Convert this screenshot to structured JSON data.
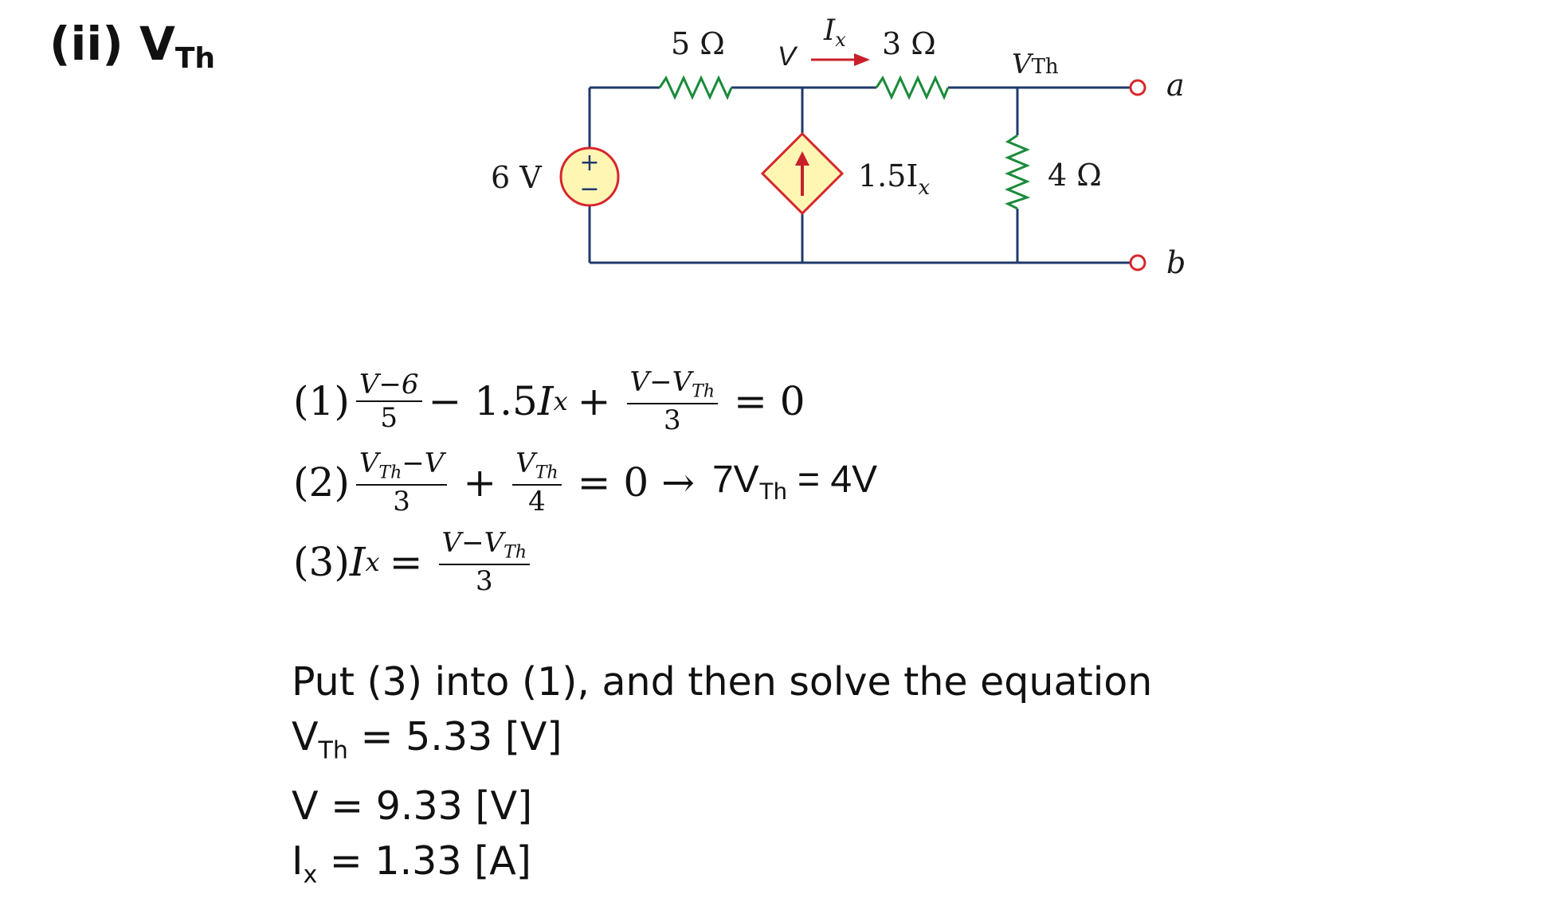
{
  "heading": {
    "main": "(ii) V",
    "sub": "Th"
  },
  "circuit": {
    "resistor_left": "5 Ω",
    "resistor_mid": "3 Ω",
    "resistor_right": "4 Ω",
    "source_label": "6 V",
    "source_plus": "+",
    "source_minus": "−",
    "node_v": "V",
    "current_label": "I",
    "current_sub": "x",
    "dependent_label": "1.5I",
    "dependent_sub": "x",
    "node_vth": "V",
    "node_vth_sub": "Th",
    "terminal_a": "a",
    "terminal_b": "b",
    "colors": {
      "wire": "#1f3a6b",
      "resistor": "#1a8a3a",
      "source": "#d7262c",
      "arrow": "#c8202a",
      "fill": "#fff6b3"
    }
  },
  "equations": {
    "eq1": {
      "label": "(1)",
      "frac1_num": "V−6",
      "frac1_den": "5",
      "mid": "− 1.5",
      "mid_var": "I",
      "mid_sub": "x",
      "plus": "+",
      "frac2_num_v": "V−V",
      "frac2_num_sub": "Th",
      "frac2_den": "3",
      "rhs": "= 0"
    },
    "eq2": {
      "label": "(2)",
      "frac1_num_v": "V",
      "frac1_num_sub": "Th",
      "frac1_num_rest": "−V",
      "frac1_den": "3",
      "plus": "+",
      "frac2_num_v": "V",
      "frac2_num_sub": "Th",
      "frac2_den": "4",
      "rhs": "= 0 →",
      "tail_a": "7V",
      "tail_sub": "Th",
      "tail_b": " = 4V"
    },
    "eq3": {
      "label": "(3)",
      "var": "I",
      "var_sub": "x",
      "eq": "=",
      "frac_num_v": "V−V",
      "frac_num_sub": "Th",
      "frac_den": "3"
    }
  },
  "solution": {
    "line1": "Put (3) into (1), and then solve the equation",
    "line2_a": "V",
    "line2_sub": "Th",
    "line2_b": " = 5.33 [V]",
    "line3": "V = 9.33 [V]",
    "line4_a": "I",
    "line4_sub": "x",
    "line4_b": " = 1.33 [A]"
  }
}
